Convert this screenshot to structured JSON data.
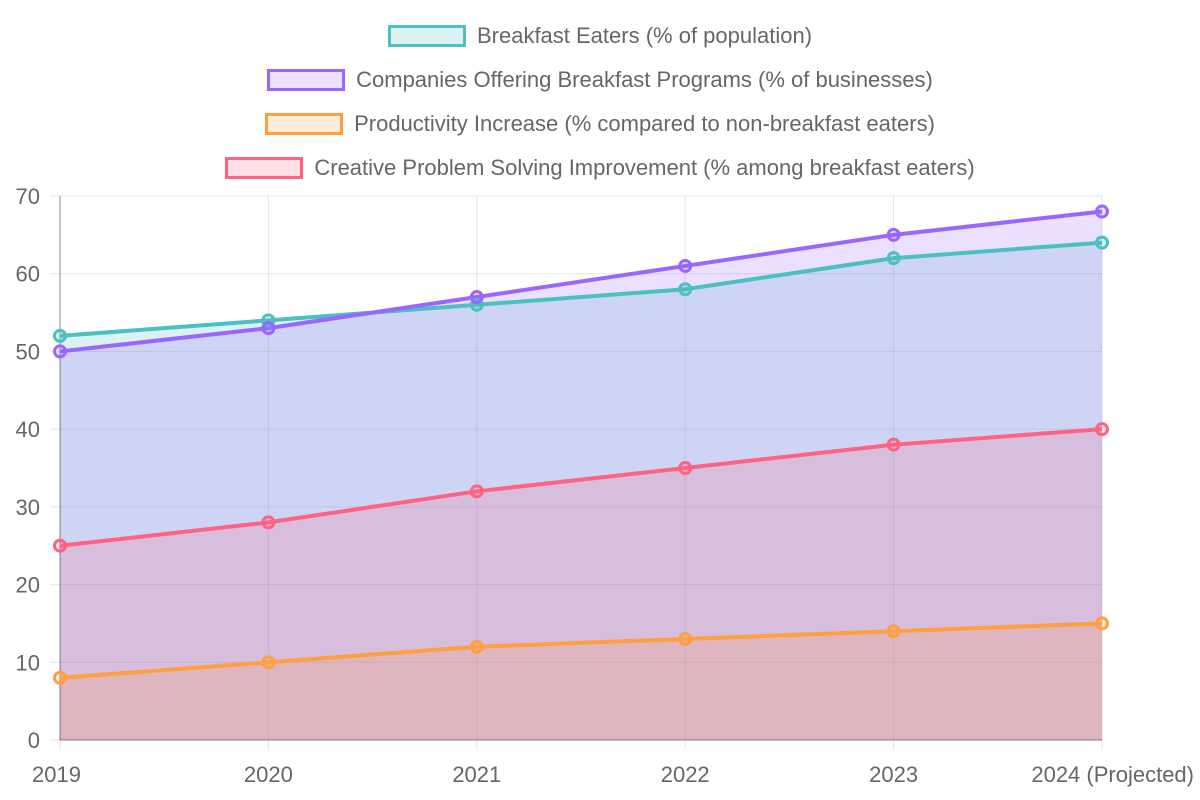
{
  "chart_data": {
    "type": "area",
    "title": "",
    "xlabel": "",
    "ylabel": "",
    "categories": [
      "2019",
      "2020",
      "2021",
      "2022",
      "2023",
      "2024 (Projected)"
    ],
    "ylim": [
      0,
      70
    ],
    "yticks": [
      0,
      10,
      20,
      30,
      40,
      50,
      60,
      70
    ],
    "grid": true,
    "legend_position": "top",
    "series": [
      {
        "name": "Breakfast Eaters (% of population)",
        "values": [
          52,
          54,
          56,
          58,
          62,
          64
        ],
        "color": "#4bc0c0",
        "fill": "rgba(75,192,192,0.2)"
      },
      {
        "name": "Companies Offering Breakfast Programs (% of businesses)",
        "values": [
          50,
          53,
          57,
          61,
          65,
          68
        ],
        "color": "#9966ff",
        "fill": "rgba(153,102,255,0.2)"
      },
      {
        "name": "Productivity Increase (% compared to non-breakfast eaters)",
        "values": [
          8,
          10,
          12,
          13,
          14,
          15
        ],
        "color": "#ff9f40",
        "fill": "rgba(255,159,64,0.2)"
      },
      {
        "name": "Creative Problem Solving Improvement (% among breakfast eaters)",
        "values": [
          25,
          28,
          32,
          35,
          38,
          40
        ],
        "color": "#ff6384",
        "fill": "rgba(255,99,132,0.2)"
      }
    ]
  }
}
